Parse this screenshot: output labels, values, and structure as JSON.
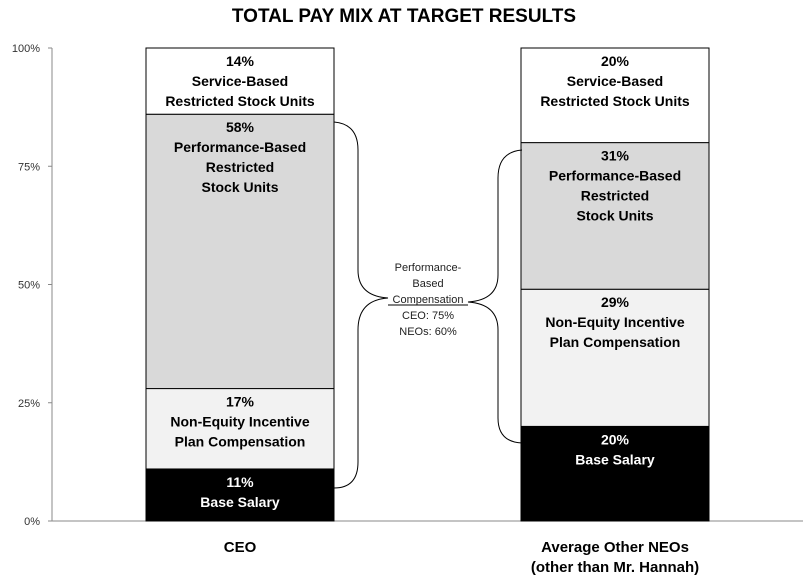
{
  "chart_data": {
    "type": "bar",
    "stacked": true,
    "title": "TOTAL PAY MIX AT TARGET RESULTS",
    "y_ticks": [
      "0%",
      "25%",
      "50%",
      "75%",
      "100%"
    ],
    "ylim": [
      0,
      100
    ],
    "categories": [
      {
        "name": "CEO",
        "label_lines": [
          "CEO"
        ]
      },
      {
        "name": "Average Other NEOs (other than Mr. Hannah)",
        "label_lines": [
          "Average Other NEOs",
          "(other than Mr. Hannah)"
        ]
      }
    ],
    "series": [
      {
        "name": "Base Salary",
        "label_lines": [
          "Base Salary"
        ],
        "values": [
          11,
          20
        ],
        "color": "#000000",
        "text_color": "#ffffff"
      },
      {
        "name": "Non-Equity Incentive Plan Compensation",
        "label_lines": [
          "Non-Equity Incentive",
          "Plan Compensation"
        ],
        "values": [
          17,
          29
        ],
        "color": "#f2f2f2",
        "text_color": "#000000"
      },
      {
        "name": "Performance-Based Restricted Stock Units",
        "label_lines": [
          "Performance-Based",
          "Restricted",
          "Stock Units"
        ],
        "values": [
          58,
          31
        ],
        "color": "#d9d9d9",
        "text_color": "#000000"
      },
      {
        "name": "Service-Based Restricted Stock Units",
        "label_lines": [
          "Service-Based",
          "Restricted Stock Units"
        ],
        "values": [
          14,
          20
        ],
        "color": "#ffffff",
        "text_color": "#000000"
      }
    ],
    "annotation": {
      "lines": [
        "Performance-",
        "Based",
        "Compensation",
        "CEO: 75%",
        "NEOs: 60%"
      ]
    }
  }
}
